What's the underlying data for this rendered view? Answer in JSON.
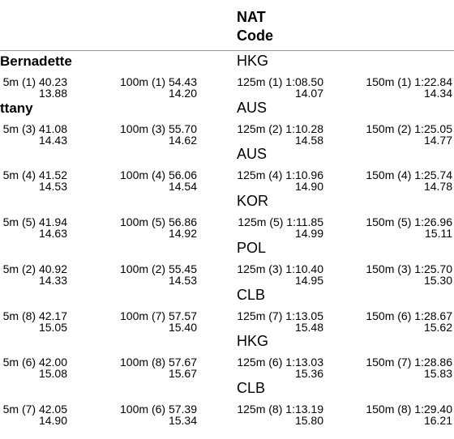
{
  "header": {
    "nat_code": [
      "NAT",
      "Code"
    ]
  },
  "rows": [
    {
      "name": "Bernadette",
      "code": "HKG",
      "splits": [
        {
          "distance": "5m",
          "rank": "(1)",
          "time": "40.23",
          "split": "13.88"
        },
        {
          "distance": "100m",
          "rank": "(1)",
          "time": "54.43",
          "split": "14.20"
        },
        {
          "distance": "125m",
          "rank": "(1)",
          "time": "1:08.50",
          "split": "14.07"
        },
        {
          "distance": "150m",
          "rank": "(1)",
          "time": "1:22.84",
          "split": "14.34"
        }
      ]
    },
    {
      "name": "ttany",
      "code": "AUS",
      "splits": [
        {
          "distance": "5m",
          "rank": "(3)",
          "time": "41.08",
          "split": "14.43"
        },
        {
          "distance": "100m",
          "rank": "(3)",
          "time": "55.70",
          "split": "14.62"
        },
        {
          "distance": "125m",
          "rank": "(2)",
          "time": "1:10.28",
          "split": "14.58"
        },
        {
          "distance": "150m",
          "rank": "(2)",
          "time": "1:25.05",
          "split": "14.77"
        }
      ]
    },
    {
      "code": "AUS",
      "splits": [
        {
          "distance": "5m",
          "rank": "(4)",
          "time": "41.52",
          "split": "14.53"
        },
        {
          "distance": "100m",
          "rank": "(4)",
          "time": "56.06",
          "split": "14.54"
        },
        {
          "distance": "125m",
          "rank": "(4)",
          "time": "1:10.96",
          "split": "14.90"
        },
        {
          "distance": "150m",
          "rank": "(4)",
          "time": "1:25.74",
          "split": "14.78"
        }
      ]
    },
    {
      "code": "KOR",
      "splits": [
        {
          "distance": "5m",
          "rank": "(5)",
          "time": "41.94",
          "split": "14.63"
        },
        {
          "distance": "100m",
          "rank": "(5)",
          "time": "56.86",
          "split": "14.92"
        },
        {
          "distance": "125m",
          "rank": "(5)",
          "time": "1:11.85",
          "split": "14.99"
        },
        {
          "distance": "150m",
          "rank": "(5)",
          "time": "1:26.96",
          "split": "15.11"
        }
      ]
    },
    {
      "code": "POL",
      "splits": [
        {
          "distance": "5m",
          "rank": "(2)",
          "time": "40.92",
          "split": "14.33"
        },
        {
          "distance": "100m",
          "rank": "(2)",
          "time": "55.45",
          "split": "14.53"
        },
        {
          "distance": "125m",
          "rank": "(3)",
          "time": "1:10.40",
          "split": "14.95"
        },
        {
          "distance": "150m",
          "rank": "(3)",
          "time": "1:25.70",
          "split": "15.30"
        }
      ]
    },
    {
      "code": "CLB",
      "splits": [
        {
          "distance": "5m",
          "rank": "(8)",
          "time": "42.17",
          "split": "15.05"
        },
        {
          "distance": "100m",
          "rank": "(7)",
          "time": "57.57",
          "split": "15.40"
        },
        {
          "distance": "125m",
          "rank": "(7)",
          "time": "1:13.05",
          "split": "15.48"
        },
        {
          "distance": "150m",
          "rank": "(6)",
          "time": "1:28.67",
          "split": "15.62"
        }
      ]
    },
    {
      "code": "HKG",
      "splits": [
        {
          "distance": "5m",
          "rank": "(6)",
          "time": "42.00",
          "split": "15.08"
        },
        {
          "distance": "100m",
          "rank": "(8)",
          "time": "57.67",
          "split": "15.67"
        },
        {
          "distance": "125m",
          "rank": "(6)",
          "time": "1:13.03",
          "split": "15.36"
        },
        {
          "distance": "150m",
          "rank": "(7)",
          "time": "1:28.86",
          "split": "15.83"
        }
      ]
    },
    {
      "code": "CLB",
      "splits": [
        {
          "distance": "5m",
          "rank": "(7)",
          "time": "42.05",
          "split": "14.90"
        },
        {
          "distance": "100m",
          "rank": "(6)",
          "time": "57.39",
          "split": "15.34"
        },
        {
          "distance": "125m",
          "rank": "(8)",
          "time": "1:13.19",
          "split": "15.80"
        },
        {
          "distance": "150m",
          "rank": "(8)",
          "time": "1:29.40",
          "split": "16.21"
        }
      ]
    }
  ]
}
